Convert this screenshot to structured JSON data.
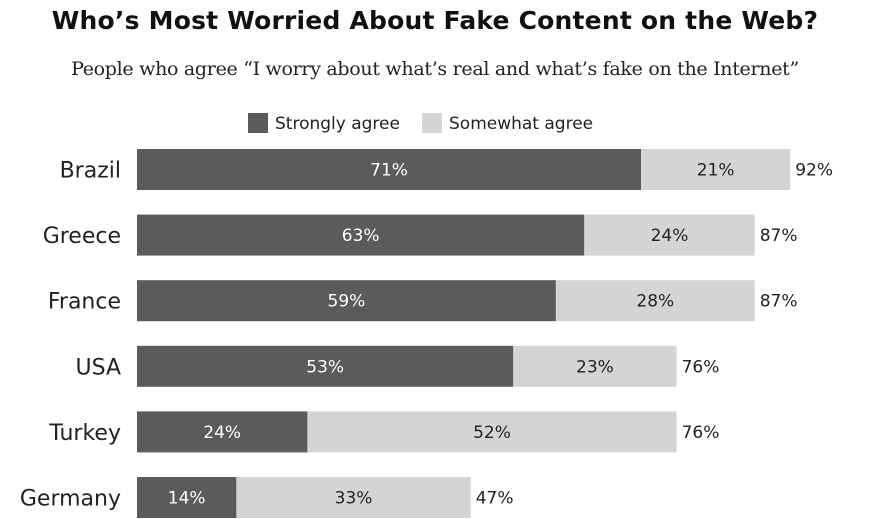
{
  "title": "Who’s Most Worried About Fake Content on the Web?",
  "subtitle": "People who agree “I worry about what’s real and what’s fake on the Internet”",
  "colors": {
    "strongly": "#5d5a5a",
    "somewhat": "#d4d4d4",
    "label_dark": "#222222",
    "label_light": "#ffffff"
  },
  "chart_data": {
    "type": "bar",
    "orientation": "horizontal",
    "stacked": true,
    "categories": [
      "Brazil",
      "Greece",
      "France",
      "USA",
      "Turkey",
      "Germany"
    ],
    "series": [
      {
        "name": "Strongly agree",
        "values": [
          71,
          63,
          59,
          53,
          24,
          14
        ],
        "labels": [
          "71%",
          "63%",
          "59%",
          "53%",
          "24%",
          "14%"
        ]
      },
      {
        "name": "Somewhat agree",
        "values": [
          21,
          24,
          28,
          23,
          52,
          33
        ],
        "labels": [
          "21%",
          "24%",
          "28%",
          "23%",
          "52%",
          "33%"
        ]
      }
    ],
    "totals": [
      92,
      87,
      87,
      76,
      76,
      47
    ],
    "total_labels": [
      "92%",
      "87%",
      "87%",
      "76%",
      "76%",
      "47%"
    ],
    "legend_position": "top",
    "grid": false
  }
}
